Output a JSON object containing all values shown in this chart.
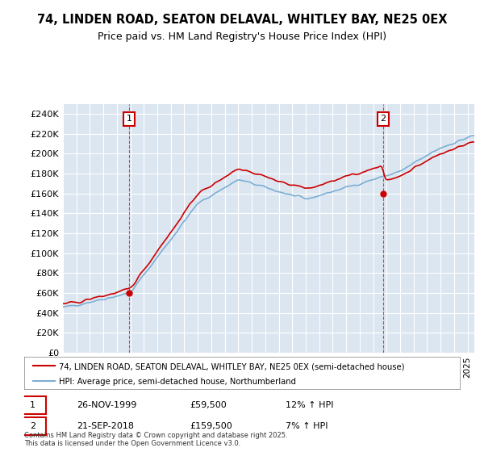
{
  "title": "74, LINDEN ROAD, SEATON DELAVAL, WHITLEY BAY, NE25 0EX",
  "subtitle": "Price paid vs. HM Land Registry's House Price Index (HPI)",
  "ylabel": "",
  "background_color": "#dce6f1",
  "plot_bg_color": "#dce6f1",
  "sale1_date": "26-NOV-1999",
  "sale1_price": 59500,
  "sale1_label": "1",
  "sale1_hpi": "12% ↑ HPI",
  "sale2_date": "21-SEP-2018",
  "sale2_price": 159500,
  "sale2_label": "2",
  "sale2_hpi": "7% ↑ HPI",
  "legend_line1": "74, LINDEN ROAD, SEATON DELAVAL, WHITLEY BAY, NE25 0EX (semi-detached house)",
  "legend_line2": "HPI: Average price, semi-detached house, Northumberland",
  "footer": "Contains HM Land Registry data © Crown copyright and database right 2025.\nThis data is licensed under the Open Government Licence v3.0.",
  "line_color": "#cc0000",
  "hpi_color": "#7bafd4",
  "marker_color": "#cc0000",
  "ylim_min": 0,
  "ylim_max": 250000,
  "ytick_step": 20000
}
